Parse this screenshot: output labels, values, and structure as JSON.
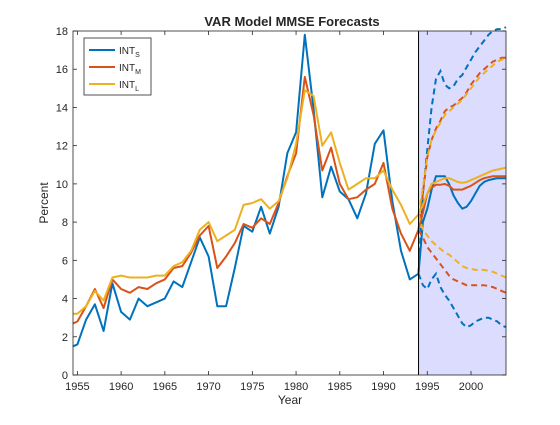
{
  "chart_data": {
    "type": "line",
    "title": "VAR Model MMSE Forecasts",
    "xlabel": "Year",
    "ylabel": "Percent",
    "xlim": [
      1954.5,
      2004
    ],
    "ylim": [
      0,
      18
    ],
    "xticks": [
      1955,
      1960,
      1965,
      1970,
      1975,
      1980,
      1985,
      1990,
      1995,
      2000
    ],
    "yticks": [
      0,
      2,
      4,
      6,
      8,
      10,
      12,
      14,
      16,
      18
    ],
    "grid": false,
    "legend_position": "top-left",
    "forecast_start": 1994,
    "forecast_band": [
      1994,
      2004
    ],
    "colors": {
      "INT_S": "#0072BD",
      "INT_M": "#D95319",
      "INT_L": "#EDB120",
      "band": "#dcdcff",
      "divider": "#000000"
    },
    "x": [
      1954.5,
      1955,
      1956,
      1957,
      1958,
      1959,
      1960,
      1961,
      1962,
      1963,
      1964,
      1965,
      1966,
      1967,
      1968,
      1969,
      1970,
      1971,
      1972,
      1973,
      1974,
      1975,
      1976,
      1977,
      1978,
      1979,
      1980,
      1981,
      1982,
      1983,
      1984,
      1985,
      1986,
      1987,
      1988,
      1989,
      1990,
      1991,
      1992,
      1993,
      1994
    ],
    "series": [
      {
        "key": "INT_S",
        "name": "INT",
        "sub": "S",
        "values": [
          1.5,
          1.6,
          2.9,
          3.7,
          2.3,
          4.8,
          3.3,
          2.9,
          4.0,
          3.6,
          3.8,
          4.0,
          4.9,
          4.6,
          5.9,
          7.2,
          6.2,
          3.6,
          3.6,
          5.6,
          7.8,
          7.5,
          8.8,
          7.4,
          8.8,
          11.6,
          12.7,
          17.8,
          13.9,
          9.3,
          10.9,
          9.6,
          9.2,
          8.2,
          9.5,
          12.1,
          12.8,
          9.1,
          6.5,
          5.0,
          5.3
        ]
      },
      {
        "key": "INT_M",
        "name": "INT",
        "sub": "M",
        "values": [
          2.7,
          2.8,
          3.6,
          4.5,
          3.5,
          5.0,
          4.5,
          4.3,
          4.6,
          4.5,
          4.8,
          5.0,
          5.6,
          5.7,
          6.4,
          7.3,
          7.8,
          5.6,
          6.2,
          6.9,
          7.9,
          7.7,
          8.2,
          7.9,
          9.0,
          10.4,
          11.6,
          15.6,
          13.6,
          10.7,
          11.9,
          10.0,
          9.2,
          9.3,
          9.7,
          10.0,
          11.1,
          8.7,
          7.4,
          6.5,
          7.6
        ]
      },
      {
        "key": "INT_L",
        "name": "INT",
        "sub": "L",
        "values": [
          3.2,
          3.2,
          3.6,
          4.4,
          3.9,
          5.1,
          5.2,
          5.1,
          5.1,
          5.1,
          5.2,
          5.2,
          5.7,
          5.9,
          6.5,
          7.6,
          8.0,
          7.0,
          7.3,
          7.6,
          8.9,
          9.0,
          9.2,
          8.7,
          9.1,
          10.3,
          12.1,
          14.9,
          14.6,
          12.0,
          12.7,
          11.1,
          9.7,
          10.0,
          10.3,
          10.3,
          10.7,
          9.7,
          8.9,
          7.9,
          8.4
        ]
      }
    ],
    "forecast_x": [
      1994,
      1994.5,
      1995,
      1995.5,
      1996,
      1996.5,
      1997,
      1997.5,
      1998,
      1998.5,
      1999,
      1999.5,
      2000,
      2000.5,
      2001,
      2001.5,
      2002,
      2002.5,
      2003,
      2003.5,
      2004
    ],
    "forecasts": [
      {
        "key": "INT_S",
        "mean": [
          5.3,
          8.0,
          8.7,
          9.7,
          10.4,
          10.4,
          10.4,
          10.0,
          9.4,
          9.0,
          8.7,
          8.8,
          9.1,
          9.5,
          9.9,
          10.1,
          10.2,
          10.25,
          10.3,
          10.3,
          10.3
        ],
        "upper": [
          5.3,
          9.5,
          11.8,
          14.0,
          15.5,
          15.9,
          15.2,
          15.0,
          15.1,
          15.5,
          15.7,
          16.1,
          16.5,
          16.9,
          17.2,
          17.5,
          17.8,
          18.0,
          18.1,
          18.1,
          18.2
        ],
        "lower": [
          5.3,
          4.7,
          4.5,
          5.0,
          5.3,
          4.6,
          4.2,
          3.9,
          3.5,
          3.1,
          2.7,
          2.5,
          2.6,
          2.8,
          2.9,
          3.0,
          3.0,
          2.9,
          2.8,
          2.6,
          2.5
        ]
      },
      {
        "key": "INT_M",
        "mean": [
          7.6,
          8.5,
          9.5,
          9.8,
          9.95,
          9.95,
          10.0,
          9.9,
          9.7,
          9.7,
          9.7,
          9.8,
          9.9,
          10.05,
          10.2,
          10.3,
          10.35,
          10.4,
          10.4,
          10.4,
          10.4
        ],
        "upper": [
          7.6,
          9.5,
          11.4,
          12.3,
          12.9,
          13.3,
          13.8,
          14.0,
          14.1,
          14.3,
          14.5,
          14.8,
          15.2,
          15.5,
          15.8,
          16.0,
          16.2,
          16.4,
          16.5,
          16.6,
          16.6
        ],
        "lower": [
          7.6,
          7.2,
          6.7,
          6.4,
          6.1,
          5.8,
          5.5,
          5.2,
          5.0,
          4.9,
          4.8,
          4.7,
          4.7,
          4.7,
          4.7,
          4.7,
          4.65,
          4.6,
          4.5,
          4.4,
          4.3
        ]
      },
      {
        "key": "INT_L",
        "mean": [
          8.4,
          8.9,
          9.5,
          10.0,
          10.1,
          10.2,
          10.3,
          10.3,
          10.2,
          10.1,
          10.05,
          10.1,
          10.2,
          10.3,
          10.4,
          10.5,
          10.6,
          10.7,
          10.75,
          10.8,
          10.85
        ],
        "upper": [
          8.4,
          9.8,
          11.4,
          12.3,
          12.8,
          13.2,
          13.6,
          13.8,
          14.0,
          14.2,
          14.4,
          14.7,
          15.0,
          15.3,
          15.6,
          15.8,
          16.0,
          16.2,
          16.4,
          16.5,
          16.6
        ],
        "lower": [
          8.4,
          7.6,
          7.3,
          7.0,
          6.8,
          6.6,
          6.4,
          6.3,
          6.1,
          5.9,
          5.7,
          5.6,
          5.55,
          5.5,
          5.5,
          5.5,
          5.45,
          5.4,
          5.3,
          5.2,
          5.1
        ]
      }
    ]
  }
}
